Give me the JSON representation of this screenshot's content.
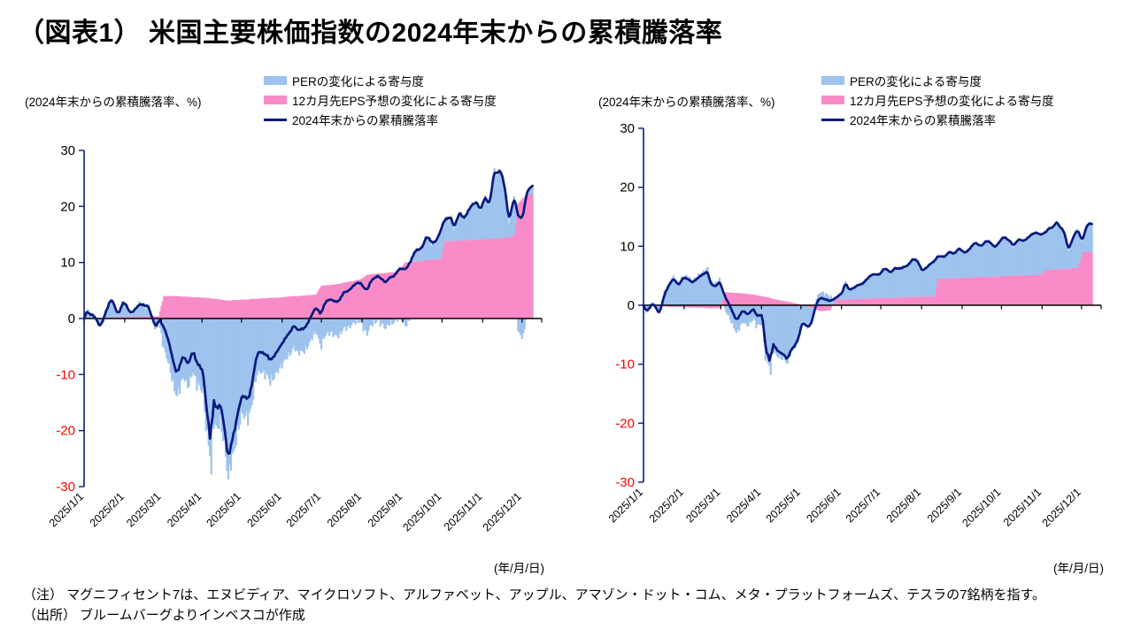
{
  "title": "（図表1） 米国主要株価指数の2024年末からの累積騰落率",
  "unit_label": "(2024年末からの累積騰落率、%)",
  "x_axis_caption": "(年/月/日)",
  "notes": {
    "note": "（注） マグニフィセント7は、エヌビディア、マイクロソフト、アルファベット、アップル、アマゾン・ドット・コム、メタ・プラットフォームズ、テスラの7銘柄を指す。",
    "source": "（出所） ブルームバーグよりインベスコが作成"
  },
  "legend": [
    {
      "label": "PERの変化による寄与度",
      "marker": "bar",
      "color": "#9DC3EE"
    },
    {
      "label": "12カ月先EPS予想の変化による寄与度",
      "marker": "bar",
      "color": "#F98CC8"
    },
    {
      "label": "2024年末からの累積騰落率",
      "marker": "line",
      "color": "#0A1A7E"
    }
  ],
  "axes": {
    "ylim": [
      -30,
      30
    ],
    "y_ticks": [
      30,
      20,
      10,
      0,
      -10,
      -20,
      -30
    ],
    "x_ticks": [
      "2025/1/1",
      "2025/2/1",
      "2025/3/1",
      "2025/4/1",
      "2025/5/1",
      "2025/6/1",
      "2025/7/1",
      "2025/8/1",
      "2025/9/1",
      "2025/10/1",
      "2025/11/1",
      "2025/12/1"
    ],
    "positive_tick_color": "#000000",
    "negative_tick_color": "#FF0000",
    "grid": false
  },
  "chart_data": [
    {
      "name": "left-chart",
      "type": "bar",
      "subtype": "stacked-daily-bars-with-line",
      "dates": [
        "1/1",
        "1/3",
        "1/8",
        "1/13",
        "1/17",
        "1/22",
        "1/27",
        "1/31",
        "2/5",
        "2/11",
        "2/14",
        "2/19",
        "2/21",
        "2/25",
        "2/27",
        "3/3",
        "3/6",
        "3/10",
        "3/13",
        "3/18",
        "3/21",
        "3/25",
        "3/28",
        "4/2",
        "4/4",
        "4/7",
        "4/8",
        "4/9",
        "4/11",
        "4/15",
        "4/17",
        "4/21",
        "4/23",
        "4/25",
        "4/29",
        "5/2",
        "5/7",
        "5/9",
        "5/13",
        "5/16",
        "5/20",
        "5/23",
        "5/28",
        "6/2",
        "6/5",
        "6/10",
        "6/13",
        "6/18",
        "6/24",
        "6/27",
        "7/1",
        "7/3",
        "7/9",
        "7/15",
        "7/18",
        "7/23",
        "7/28",
        "7/31",
        "8/5",
        "8/8",
        "8/13",
        "8/19",
        "8/22",
        "8/27",
        "8/29",
        "9/3",
        "9/8",
        "9/11",
        "9/16",
        "9/19",
        "9/23",
        "9/26",
        "9/30",
        "10/3",
        "10/8",
        "10/10",
        "10/15",
        "10/17",
        "10/22",
        "10/28",
        "10/30",
        "11/3",
        "11/6",
        "11/10",
        "11/12",
        "11/14",
        "11/18",
        "11/21",
        "11/25",
        "11/28",
        "12/2",
        "12/4",
        "12/8",
        "12/9"
      ],
      "cumulative_return": [
        0,
        1.5,
        0.5,
        -1.5,
        1.0,
        3.3,
        1.0,
        2.8,
        1.2,
        2.0,
        2.4,
        2.6,
        0.5,
        -2.0,
        0.3,
        -1.5,
        -4.0,
        -7.5,
        -9.5,
        -7.0,
        -8.0,
        -5.5,
        -8.5,
        -9.0,
        -15.0,
        -21.0,
        -25.0,
        -14.0,
        -16.0,
        -14.5,
        -18.0,
        -26.0,
        -22.0,
        -20.0,
        -16.5,
        -14.0,
        -13.5,
        -12.0,
        -6.5,
        -5.5,
        -6.5,
        -8.0,
        -5.5,
        -4.5,
        -3.0,
        -1.0,
        -2.5,
        -1.5,
        0.5,
        2.0,
        1.0,
        2.5,
        3.5,
        3.0,
        4.5,
        5.5,
        6.0,
        6.5,
        5.0,
        6.5,
        8.0,
        6.0,
        7.5,
        8.0,
        8.5,
        9.0,
        10.5,
        12.0,
        13.0,
        14.5,
        13.5,
        14.0,
        15.5,
        17.5,
        18.5,
        16.0,
        19.0,
        18.0,
        19.5,
        21.0,
        19.5,
        21.5,
        20.0,
        27.0,
        25.5,
        26.5,
        23.5,
        17.5,
        21.5,
        18.0,
        18.5,
        22.0,
        23.5,
        23.5
      ],
      "eps_contribution": [
        0,
        0,
        0,
        0,
        0.2,
        0.2,
        0.3,
        0.3,
        0.3,
        0.3,
        0.3,
        0.4,
        0.4,
        0.4,
        0.4,
        4.0,
        4.0,
        4.0,
        4.0,
        3.9,
        3.9,
        3.8,
        3.8,
        3.7,
        3.7,
        3.6,
        3.6,
        3.5,
        3.5,
        3.4,
        3.3,
        3.2,
        3.2,
        3.3,
        3.3,
        3.4,
        3.4,
        3.5,
        3.5,
        3.6,
        3.6,
        3.7,
        3.7,
        3.8,
        3.9,
        4.0,
        4.0,
        4.1,
        4.2,
        4.3,
        5.8,
        5.9,
        6.0,
        6.2,
        6.4,
        6.6,
        6.8,
        7.0,
        7.8,
        7.9,
        8.0,
        8.1,
        8.2,
        8.3,
        8.4,
        10.0,
        10.1,
        10.2,
        10.3,
        10.4,
        10.5,
        10.6,
        10.7,
        13.8,
        13.8,
        13.9,
        13.9,
        14.0,
        14.0,
        14.1,
        14.1,
        14.2,
        14.2,
        14.3,
        14.3,
        14.4,
        14.4,
        14.5,
        15.0,
        20.5,
        21.5,
        22.0,
        22.3,
        22.0
      ],
      "per_contribution": [
        0,
        1.5,
        0.5,
        -1.5,
        0.8,
        3.1,
        0.7,
        2.5,
        0.9,
        1.7,
        2.1,
        2.2,
        0.1,
        -2.4,
        -0.1,
        -5.5,
        -8.0,
        -11.5,
        -13.5,
        -10.9,
        -11.9,
        -9.3,
        -12.3,
        -12.7,
        -18.7,
        -24.6,
        -28.6,
        -17.5,
        -19.5,
        -17.9,
        -21.3,
        -29.2,
        -25.2,
        -23.3,
        -19.8,
        -17.4,
        -16.9,
        -15.5,
        -10.0,
        -9.1,
        -10.1,
        -11.7,
        -9.2,
        -8.3,
        -6.9,
        -5.0,
        -6.5,
        -5.6,
        -3.7,
        -2.3,
        -4.8,
        -3.4,
        -2.5,
        -3.2,
        -1.9,
        -1.1,
        -0.8,
        -0.5,
        -2.8,
        -1.4,
        0.0,
        -2.1,
        -0.7,
        -0.3,
        0.1,
        -1.0,
        0.4,
        1.8,
        2.7,
        4.1,
        3.0,
        3.4,
        4.8,
        3.7,
        4.7,
        2.1,
        5.1,
        4.0,
        5.5,
        6.9,
        5.4,
        7.3,
        5.8,
        12.7,
        11.2,
        12.1,
        9.1,
        3.0,
        6.5,
        -2.5,
        -3.0,
        0.0,
        1.2,
        1.5
      ]
    },
    {
      "name": "right-chart",
      "type": "bar",
      "subtype": "stacked-daily-bars-with-line",
      "dates": [
        "1/1",
        "1/3",
        "1/8",
        "1/13",
        "1/17",
        "1/22",
        "1/24",
        "1/28",
        "1/31",
        "2/5",
        "2/7",
        "2/12",
        "2/14",
        "2/19",
        "2/21",
        "2/25",
        "2/28",
        "3/4",
        "3/6",
        "3/11",
        "3/13",
        "3/18",
        "3/21",
        "3/26",
        "3/28",
        "4/2",
        "4/4",
        "4/7",
        "4/8",
        "4/9",
        "4/11",
        "4/16",
        "4/21",
        "4/23",
        "4/25",
        "4/29",
        "5/2",
        "5/7",
        "5/9",
        "5/13",
        "5/16",
        "5/21",
        "5/23",
        "5/28",
        "6/2",
        "6/4",
        "6/6",
        "6/11",
        "6/16",
        "6/20",
        "6/24",
        "6/27",
        "7/1",
        "7/3",
        "7/9",
        "7/11",
        "7/16",
        "7/22",
        "7/25",
        "7/30",
        "8/1",
        "8/6",
        "8/11",
        "8/13",
        "8/19",
        "8/22",
        "8/27",
        "8/29",
        "9/3",
        "9/8",
        "9/11",
        "9/16",
        "9/19",
        "9/23",
        "9/26",
        "9/30",
        "10/3",
        "10/8",
        "10/10",
        "10/15",
        "10/17",
        "10/22",
        "10/28",
        "10/31",
        "11/4",
        "11/6",
        "11/10",
        "11/12",
        "11/14",
        "11/18",
        "11/21",
        "11/25",
        "11/28",
        "12/2",
        "12/4",
        "12/8",
        "12/9"
      ],
      "cumulative_return": [
        0,
        -1.0,
        0.3,
        -1.5,
        2.0,
        3.8,
        4.6,
        3.5,
        4.5,
        4.4,
        4.0,
        4.5,
        5.0,
        6.0,
        3.5,
        3.0,
        4.3,
        1.5,
        0.5,
        -1.5,
        -2.5,
        -1.0,
        -1.5,
        -0.5,
        -2.0,
        -1.5,
        -7.5,
        -9.0,
        -11.0,
        -6.5,
        -7.0,
        -8.0,
        -9.5,
        -7.5,
        -7.0,
        -6.0,
        -3.0,
        -3.5,
        -3.2,
        0.3,
        1.5,
        0.8,
        0.5,
        1.5,
        2.0,
        4.0,
        2.8,
        3.0,
        3.5,
        4.5,
        5.0,
        5.2,
        5.5,
        6.2,
        5.5,
        6.5,
        6.0,
        7.0,
        7.8,
        7.2,
        6.0,
        6.5,
        7.5,
        8.5,
        8.0,
        9.2,
        8.8,
        9.5,
        9.0,
        9.8,
        10.5,
        10.2,
        10.8,
        10.5,
        10.0,
        10.8,
        11.5,
        11.0,
        10.0,
        11.2,
        11.0,
        11.5,
        12.5,
        12.0,
        12.2,
        13.0,
        13.5,
        14.3,
        13.2,
        12.5,
        9.5,
        11.5,
        12.8,
        11.0,
        13.0,
        14.0,
        13.5
      ],
      "eps_contribution": [
        0,
        0,
        0,
        -0.2,
        -0.2,
        -0.3,
        -0.3,
        -0.3,
        -0.3,
        -0.4,
        -0.4,
        -0.4,
        -0.4,
        -0.5,
        -0.5,
        -0.5,
        -0.5,
        2.2,
        2.2,
        2.1,
        2.1,
        2.0,
        1.9,
        1.8,
        1.7,
        1.5,
        1.4,
        1.3,
        1.2,
        1.1,
        1.0,
        0.8,
        0.6,
        0.5,
        0.4,
        0.2,
        0.0,
        -0.3,
        -0.5,
        -0.8,
        -1.0,
        -0.9,
        -0.9,
        1.0,
        1.0,
        1.0,
        1.0,
        1.1,
        1.1,
        1.1,
        1.2,
        1.2,
        1.2,
        1.3,
        1.3,
        1.3,
        1.3,
        1.4,
        1.4,
        1.4,
        1.5,
        1.5,
        1.5,
        4.5,
        4.5,
        4.6,
        4.6,
        4.6,
        4.7,
        4.7,
        4.8,
        4.8,
        4.8,
        4.9,
        4.9,
        4.9,
        5.0,
        5.0,
        5.0,
        5.1,
        5.1,
        5.1,
        5.2,
        5.2,
        6.0,
        6.0,
        6.1,
        6.1,
        6.1,
        6.2,
        6.2,
        6.3,
        6.3,
        9.0,
        9.0,
        9.1,
        9.0
      ],
      "per_contribution": [
        0,
        -1.0,
        0.3,
        -1.3,
        2.2,
        4.1,
        4.9,
        3.8,
        4.8,
        4.8,
        4.4,
        4.9,
        5.4,
        6.5,
        4.0,
        3.5,
        4.8,
        -0.7,
        -1.7,
        -3.6,
        -4.6,
        -3.0,
        -3.4,
        -2.3,
        -3.7,
        -3.0,
        -8.9,
        -10.3,
        -12.2,
        -7.6,
        -8.0,
        -8.8,
        -10.1,
        -8.0,
        -7.4,
        -6.2,
        -3.0,
        -3.2,
        -2.7,
        1.1,
        2.5,
        1.7,
        1.4,
        0.5,
        1.0,
        3.0,
        1.8,
        1.9,
        2.4,
        3.4,
        3.8,
        4.0,
        4.3,
        4.9,
        4.2,
        5.2,
        4.7,
        5.6,
        6.4,
        5.8,
        4.5,
        5.0,
        6.0,
        4.0,
        3.5,
        4.6,
        4.2,
        4.9,
        4.3,
        5.1,
        5.7,
        5.4,
        6.0,
        5.6,
        5.1,
        5.9,
        6.5,
        6.0,
        5.0,
        6.1,
        5.9,
        6.4,
        7.3,
        6.8,
        6.2,
        7.0,
        7.4,
        8.2,
        7.1,
        6.3,
        3.3,
        5.2,
        6.5,
        2.0,
        4.0,
        4.9,
        4.5
      ]
    }
  ]
}
